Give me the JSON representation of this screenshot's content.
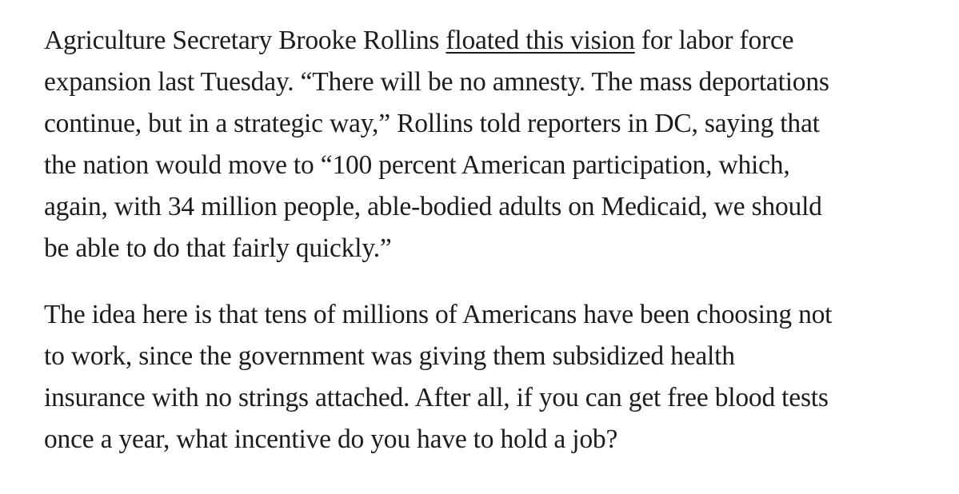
{
  "article": {
    "paragraphs": [
      {
        "lines": [
          {
            "before": "Agriculture Secretary Brooke Rollins ",
            "link": "floated this vision",
            "after": " for labor force"
          },
          {
            "text": "expansion last Tuesday. “There will be no amnesty. The mass deportations"
          },
          {
            "text": "continue, but in a strategic way,” Rollins told reporters in DC, saying that"
          },
          {
            "text": "the nation would move to “100 percent American participation, which,"
          },
          {
            "text": "again, with 34 million people, able-bodied adults on Medicaid, we should"
          },
          {
            "text": "be able to do that fairly quickly.”"
          }
        ]
      },
      {
        "lines": [
          {
            "text": "The idea here is that tens of millions of Americans have been choosing not"
          },
          {
            "text": "to work, since the government was giving them subsidized health"
          },
          {
            "text": "insurance with no strings attached. After all, if you can get free blood tests"
          },
          {
            "text": "once a year, what incentive do you have to hold a job?"
          }
        ]
      }
    ]
  }
}
